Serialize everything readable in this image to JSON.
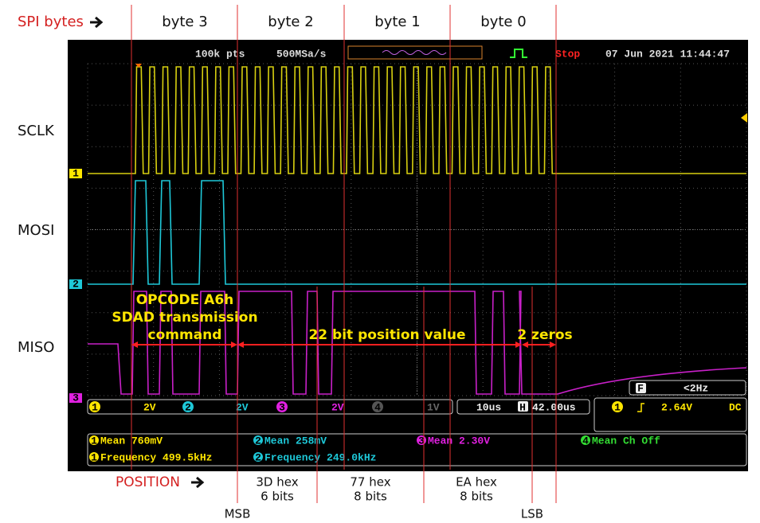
{
  "header": {
    "spi_label": "SPI bytes",
    "bytes": [
      "byte 3",
      "byte 2",
      "byte 1",
      "byte 0"
    ]
  },
  "scope": {
    "points": "100k pts",
    "sample_rate": "500MSa/s",
    "state": "Stop",
    "timestamp": "07 Jun 2021 11:44:47",
    "channels": [
      "1",
      "2",
      "3",
      "4"
    ]
  },
  "signals": [
    "SCLK",
    "MOSI",
    "MISO"
  ],
  "annotations": {
    "opcode": [
      "OPCODE A6h",
      "SDAD transmission",
      "command"
    ],
    "position_value": "22 bit position value",
    "zeros": "2 zeros"
  },
  "status_bar": {
    "ch1_scale": "2V",
    "ch2_scale": "2V",
    "ch3_scale": "2V",
    "ch4_scale": "1V",
    "timebase": "10us",
    "h_icon": "H",
    "h_position": "42.00us",
    "trigger_level": "2.64V",
    "coupling": "DC",
    "func_icon": "F",
    "trigger_freq": "<2Hz"
  },
  "measurements": {
    "ch1_mean": "Mean 760mV",
    "ch1_freq": "Frequency 499.5kHz",
    "ch2_mean": "Mean 258mV",
    "ch2_freq": "Frequency 249.0kHz",
    "ch3_mean": "Mean 2.30V",
    "ch4_mean": "Mean Ch Off"
  },
  "footer": {
    "position_label": "POSITION",
    "fields": [
      {
        "hex": "3D hex",
        "bits": "6 bits"
      },
      {
        "hex": "77 hex",
        "bits": "8 bits"
      },
      {
        "hex": "EA hex",
        "bits": "8 bits"
      }
    ],
    "msb": "MSB",
    "lsb": "LSB"
  }
}
